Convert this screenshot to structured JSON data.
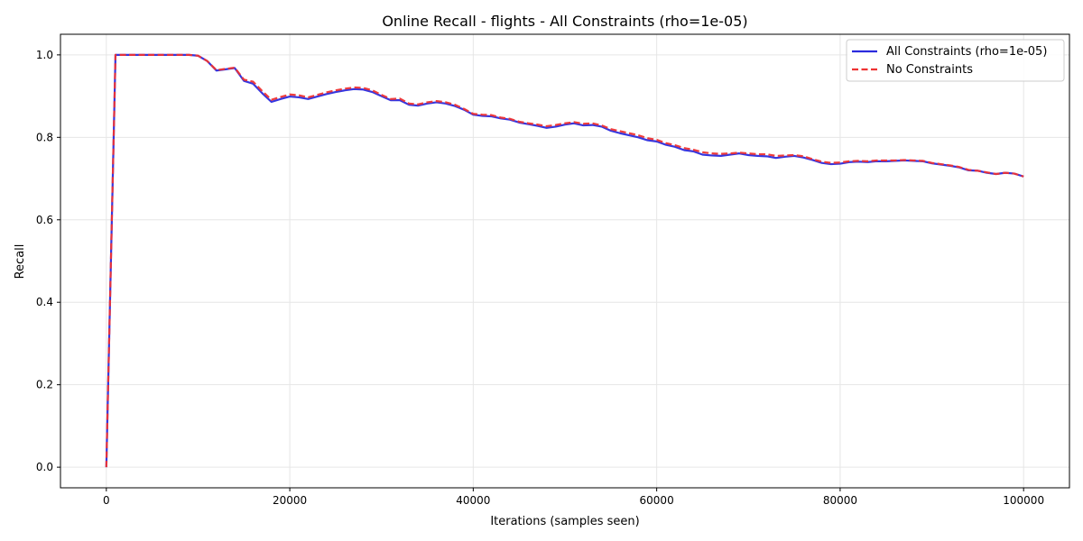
{
  "chart_data": {
    "type": "line",
    "title": "Online Recall - flights - All Constraints (rho=1e-05)",
    "xlabel": "Iterations (samples seen)",
    "ylabel": "Recall",
    "xlim": [
      -5000,
      105000
    ],
    "ylim": [
      -0.05,
      1.05
    ],
    "xticks": [
      0,
      20000,
      40000,
      60000,
      80000,
      100000
    ],
    "yticks": [
      0.0,
      0.2,
      0.4,
      0.6,
      0.8,
      1.0
    ],
    "xtick_labels": [
      "0",
      "20000",
      "40000",
      "60000",
      "80000",
      "100000"
    ],
    "ytick_labels": [
      "0.0",
      "0.2",
      "0.4",
      "0.6",
      "0.8",
      "1.0"
    ],
    "grid": true,
    "legend_position": "top-right",
    "x": [
      0,
      1000,
      2000,
      3000,
      4000,
      5000,
      6000,
      7000,
      8000,
      9000,
      10000,
      11000,
      12000,
      13000,
      14000,
      15000,
      16000,
      17000,
      18000,
      19000,
      20000,
      21000,
      22000,
      23000,
      24000,
      25000,
      26000,
      27000,
      28000,
      29000,
      30000,
      31000,
      32000,
      33000,
      34000,
      35000,
      36000,
      37000,
      38000,
      39000,
      40000,
      41000,
      42000,
      43000,
      44000,
      45000,
      46000,
      47000,
      48000,
      49000,
      50000,
      51000,
      52000,
      53000,
      54000,
      55000,
      56000,
      57000,
      58000,
      59000,
      60000,
      61000,
      62000,
      63000,
      64000,
      65000,
      66000,
      67000,
      68000,
      69000,
      70000,
      71000,
      72000,
      73000,
      74000,
      75000,
      76000,
      77000,
      78000,
      79000,
      80000,
      81000,
      82000,
      83000,
      84000,
      85000,
      86000,
      87000,
      88000,
      89000,
      90000,
      91000,
      92000,
      93000,
      94000,
      95000,
      96000,
      97000,
      98000,
      99000,
      100000
    ],
    "series": [
      {
        "name": "All Constraints (rho=1e-05)",
        "color": "#2b2bdd",
        "style": "solid",
        "values": [
          0.0,
          1.0,
          1.0,
          1.0,
          1.0,
          1.0,
          1.0,
          1.0,
          1.0,
          1.0,
          0.998,
          0.985,
          0.962,
          0.965,
          0.968,
          0.937,
          0.93,
          0.907,
          0.886,
          0.893,
          0.899,
          0.897,
          0.893,
          0.899,
          0.905,
          0.91,
          0.914,
          0.917,
          0.916,
          0.91,
          0.9,
          0.89,
          0.89,
          0.879,
          0.877,
          0.882,
          0.885,
          0.882,
          0.876,
          0.867,
          0.855,
          0.852,
          0.851,
          0.846,
          0.843,
          0.836,
          0.832,
          0.828,
          0.823,
          0.826,
          0.831,
          0.834,
          0.829,
          0.83,
          0.826,
          0.816,
          0.81,
          0.805,
          0.8,
          0.793,
          0.79,
          0.782,
          0.777,
          0.769,
          0.766,
          0.758,
          0.756,
          0.755,
          0.758,
          0.761,
          0.757,
          0.755,
          0.754,
          0.75,
          0.753,
          0.755,
          0.751,
          0.745,
          0.738,
          0.735,
          0.736,
          0.74,
          0.741,
          0.74,
          0.742,
          0.742,
          0.743,
          0.744,
          0.743,
          0.742,
          0.737,
          0.734,
          0.731,
          0.727,
          0.72,
          0.719,
          0.714,
          0.711,
          0.714,
          0.712,
          0.705
        ]
      },
      {
        "name": "No Constraints",
        "color": "#ee3333",
        "style": "dashed",
        "values": [
          0.0,
          1.0,
          1.0,
          1.0,
          1.0,
          1.0,
          1.0,
          1.0,
          1.0,
          1.0,
          0.998,
          0.985,
          0.963,
          0.966,
          0.969,
          0.94,
          0.935,
          0.912,
          0.891,
          0.898,
          0.904,
          0.902,
          0.897,
          0.903,
          0.909,
          0.914,
          0.918,
          0.921,
          0.92,
          0.914,
          0.903,
          0.893,
          0.894,
          0.882,
          0.88,
          0.885,
          0.888,
          0.885,
          0.879,
          0.869,
          0.857,
          0.855,
          0.854,
          0.848,
          0.845,
          0.838,
          0.834,
          0.831,
          0.827,
          0.83,
          0.834,
          0.837,
          0.833,
          0.834,
          0.829,
          0.82,
          0.815,
          0.81,
          0.805,
          0.798,
          0.794,
          0.786,
          0.781,
          0.774,
          0.77,
          0.764,
          0.761,
          0.76,
          0.761,
          0.763,
          0.761,
          0.759,
          0.759,
          0.755,
          0.756,
          0.757,
          0.754,
          0.747,
          0.741,
          0.738,
          0.739,
          0.742,
          0.743,
          0.742,
          0.744,
          0.744,
          0.744,
          0.745,
          0.744,
          0.743,
          0.738,
          0.735,
          0.732,
          0.728,
          0.721,
          0.719,
          0.715,
          0.711,
          0.714,
          0.712,
          0.705
        ]
      }
    ]
  }
}
